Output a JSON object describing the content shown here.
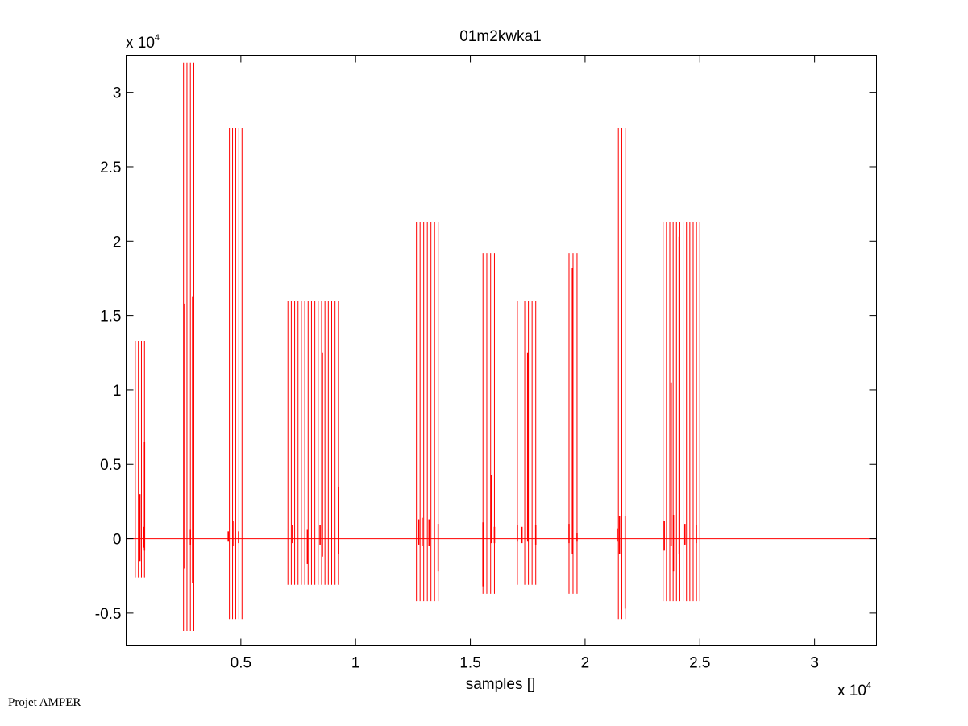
{
  "footer_text": "Projet AMPER",
  "chart_data": {
    "type": "line",
    "title": "01m2kwka1",
    "xlabel": "samples []",
    "ylabel": "",
    "x_multiplier_label": {
      "base": "x 10",
      "exp": "4"
    },
    "y_multiplier_label": {
      "base": "x 10",
      "exp": "4"
    },
    "xlim": [
      0,
      32700
    ],
    "ylim": [
      -7200,
      32500
    ],
    "x_ticks": [
      5000,
      10000,
      15000,
      20000,
      25000,
      30000
    ],
    "x_tick_labels": [
      "0.5",
      "1",
      "1.5",
      "2",
      "2.5",
      "3"
    ],
    "y_ticks": [
      -5000,
      0,
      5000,
      10000,
      15000,
      20000,
      25000,
      30000
    ],
    "y_tick_labels": [
      "-0.5",
      "0",
      "0.5",
      "1",
      "1.5",
      "2",
      "2.5",
      "3"
    ],
    "grid": false,
    "line_color": "#ff0000",
    "baseline": 0,
    "x_end": 32700,
    "bursts": [
      {
        "x_start": 400,
        "x_end": 800,
        "top": 13300,
        "bottom": -2600,
        "spikes": [
          [
            600,
            3000,
            -1500
          ],
          [
            750,
            800,
            -600
          ],
          [
            800,
            6500,
            -800
          ]
        ]
      },
      {
        "x_start": 2500,
        "x_end": 2950,
        "top": 32000,
        "bottom": -6200,
        "spikes": [
          [
            2550,
            15800,
            -2000
          ],
          [
            2800,
            600,
            -400
          ],
          [
            2900,
            16300,
            -3000
          ]
        ]
      },
      {
        "x_start": 4500,
        "x_end": 5050,
        "top": 27600,
        "bottom": -5400,
        "spikes": [
          [
            4450,
            500,
            -200
          ],
          [
            4650,
            1200,
            -500
          ],
          [
            4750,
            1100,
            -500
          ],
          [
            4900,
            500,
            -300
          ]
        ]
      },
      {
        "x_start": 7050,
        "x_end": 9250,
        "top": 16000,
        "bottom": -3100,
        "spikes": [
          [
            7250,
            900,
            -300
          ],
          [
            7900,
            600,
            -1700
          ],
          [
            8450,
            900,
            -400
          ],
          [
            8550,
            12500,
            -1200
          ],
          [
            9250,
            3500,
            -1000
          ]
        ]
      },
      {
        "x_start": 12650,
        "x_end": 13600,
        "top": 21300,
        "bottom": -4200,
        "spikes": [
          [
            12750,
            1300,
            -400
          ],
          [
            12900,
            1400,
            -500
          ],
          [
            13200,
            1300,
            -500
          ],
          [
            13600,
            1000,
            -2200
          ]
        ]
      },
      {
        "x_start": 15550,
        "x_end": 16050,
        "top": 19200,
        "bottom": -3700,
        "spikes": [
          [
            15550,
            1100,
            -3200
          ],
          [
            15900,
            4300,
            -300
          ],
          [
            16050,
            800,
            -300
          ]
        ]
      },
      {
        "x_start": 17050,
        "x_end": 17850,
        "top": 16000,
        "bottom": -3100,
        "spikes": [
          [
            17050,
            900,
            -200
          ],
          [
            17250,
            800,
            -300
          ],
          [
            17500,
            12500,
            -200
          ],
          [
            17850,
            900,
            -400
          ]
        ]
      },
      {
        "x_start": 19300,
        "x_end": 19650,
        "top": 19200,
        "bottom": -3700,
        "spikes": [
          [
            19300,
            1000,
            -300
          ],
          [
            19450,
            18200,
            -1000
          ],
          [
            19650,
            400,
            -200
          ]
        ]
      },
      {
        "x_start": 21450,
        "x_end": 21750,
        "top": 27600,
        "bottom": -5400,
        "spikes": [
          [
            21400,
            700,
            -200
          ],
          [
            21500,
            1500,
            -1000
          ],
          [
            21750,
            1500,
            -4700
          ]
        ]
      },
      {
        "x_start": 23400,
        "x_end": 25000,
        "top": 21300,
        "bottom": -4200,
        "spikes": [
          [
            23450,
            1200,
            -800
          ],
          [
            23750,
            10500,
            -500
          ],
          [
            23850,
            1600,
            -2200
          ],
          [
            24100,
            20300,
            -1000
          ],
          [
            24350,
            1000,
            -400
          ],
          [
            24850,
            900,
            -300
          ]
        ]
      }
    ]
  }
}
